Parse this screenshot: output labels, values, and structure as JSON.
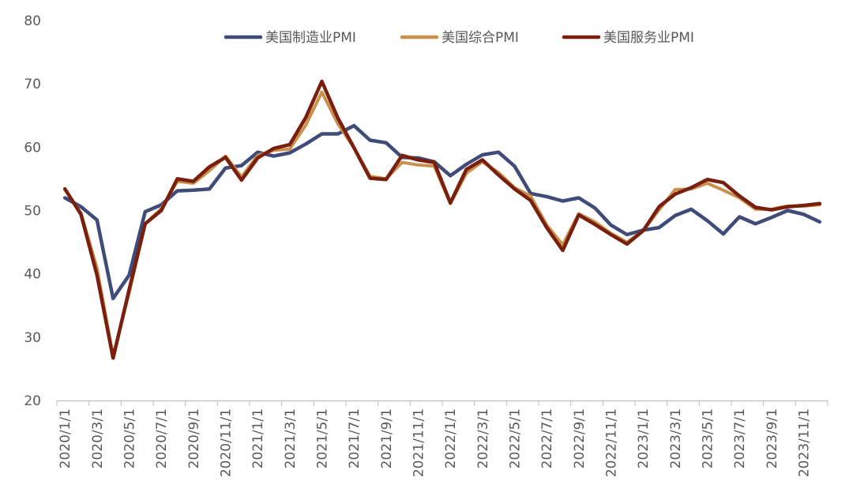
{
  "chart_data": {
    "type": "line",
    "title": "",
    "xlabel": "",
    "ylabel": "",
    "ylim": [
      20,
      80
    ],
    "yticks": [
      20,
      30,
      40,
      50,
      60,
      70,
      80
    ],
    "grid": false,
    "legend_position": "top",
    "x": [
      "2020/1/1",
      "2020/2/1",
      "2020/3/1",
      "2020/4/1",
      "2020/5/1",
      "2020/6/1",
      "2020/7/1",
      "2020/8/1",
      "2020/9/1",
      "2020/10/1",
      "2020/11/1",
      "2020/12/1",
      "2021/1/1",
      "2021/2/1",
      "2021/3/1",
      "2021/4/1",
      "2021/5/1",
      "2021/6/1",
      "2021/7/1",
      "2021/8/1",
      "2021/9/1",
      "2021/10/1",
      "2021/11/1",
      "2021/12/1",
      "2022/1/1",
      "2022/2/1",
      "2022/3/1",
      "2022/4/1",
      "2022/5/1",
      "2022/6/1",
      "2022/7/1",
      "2022/8/1",
      "2022/9/1",
      "2022/10/1",
      "2022/11/1",
      "2022/12/1",
      "2023/1/1",
      "2023/2/1",
      "2023/3/1",
      "2023/4/1",
      "2023/5/1",
      "2023/6/1",
      "2023/7/1",
      "2023/8/1",
      "2023/9/1",
      "2023/10/1",
      "2023/11/1",
      "2023/12/1"
    ],
    "x_tick_labels": [
      "2020/1/1",
      "2020/3/1",
      "2020/5/1",
      "2020/7/1",
      "2020/9/1",
      "2020/11/1",
      "2021/1/1",
      "2021/3/1",
      "2021/5/1",
      "2021/7/1",
      "2021/9/1",
      "2021/11/1",
      "2022/1/1",
      "2022/3/1",
      "2022/5/1",
      "2022/7/1",
      "2022/9/1",
      "2022/11/1",
      "2023/1/1",
      "2023/3/1",
      "2023/5/1",
      "2023/7/1",
      "2023/9/1",
      "2023/11/1"
    ],
    "series": [
      {
        "name": "美国制造业PMI",
        "color": "#3f4b78",
        "values": [
          52.0,
          50.6,
          48.5,
          36.1,
          39.8,
          49.8,
          50.9,
          53.1,
          53.2,
          53.4,
          56.7,
          57.1,
          59.2,
          58.6,
          59.1,
          60.5,
          62.1,
          62.1,
          63.4,
          61.1,
          60.7,
          58.4,
          58.3,
          57.7,
          55.5,
          57.3,
          58.8,
          59.2,
          57.0,
          52.7,
          52.2,
          51.5,
          52.0,
          50.4,
          47.7,
          46.2,
          46.9,
          47.3,
          49.2,
          50.2,
          48.4,
          46.3,
          49.0,
          47.9,
          48.9,
          50.0,
          49.4,
          48.2
        ]
      },
      {
        "name": "美国综合PMI",
        "color": "#c8914d",
        "values": [
          53.3,
          49.6,
          40.9,
          27.0,
          37.0,
          47.9,
          50.3,
          54.6,
          54.3,
          56.3,
          58.6,
          55.3,
          58.7,
          59.5,
          59.7,
          63.5,
          68.7,
          63.7,
          59.9,
          55.4,
          55.0,
          57.6,
          57.2,
          57.0,
          51.1,
          55.9,
          57.7,
          56.0,
          53.6,
          52.3,
          47.7,
          44.6,
          49.5,
          48.2,
          46.4,
          45.0,
          46.8,
          50.1,
          53.3,
          53.4,
          54.3,
          53.2,
          52.0,
          50.2,
          50.2,
          50.7,
          50.7,
          50.9
        ]
      },
      {
        "name": "美国服务业PMI",
        "color": "#7a1f0e",
        "values": [
          53.4,
          49.4,
          39.8,
          26.7,
          37.5,
          47.9,
          50.0,
          55.0,
          54.6,
          56.9,
          58.4,
          54.8,
          58.3,
          59.8,
          60.4,
          64.7,
          70.4,
          64.6,
          59.9,
          55.1,
          54.9,
          58.7,
          58.0,
          57.6,
          51.2,
          56.5,
          58.0,
          55.6,
          53.4,
          51.6,
          47.3,
          43.7,
          49.3,
          47.8,
          46.2,
          44.7,
          46.8,
          50.6,
          52.6,
          53.6,
          54.9,
          54.4,
          52.3,
          50.5,
          50.1,
          50.6,
          50.8,
          51.1
        ]
      }
    ]
  }
}
